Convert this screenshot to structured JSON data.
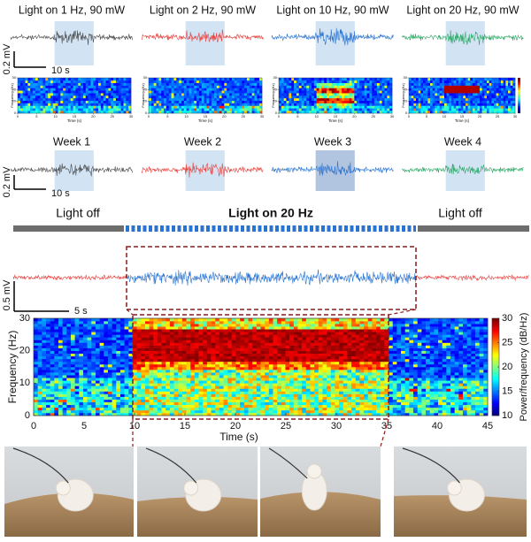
{
  "rows": [
    {
      "panels": [
        {
          "title": "Light on 1 Hz, 90 mW",
          "color": "#4d4d4d"
        },
        {
          "title": "Light on 2 Hz, 90 mW",
          "color": "#e8413c"
        },
        {
          "title": "Light on 10 Hz, 90 mW",
          "color": "#2a73d0"
        },
        {
          "title": "Light on 20 Hz, 90 mW",
          "color": "#2aa563"
        }
      ],
      "scale_bar": {
        "voltage": "0.2 mV",
        "time": "10 s"
      }
    },
    {
      "panels": [
        {
          "title": "Week 1",
          "color": "#4d4d4d"
        },
        {
          "title": "Week 2",
          "color": "#e8413c"
        },
        {
          "title": "Week 3",
          "color": "#2a73d0"
        },
        {
          "title": "Week 4",
          "color": "#2aa563"
        }
      ],
      "scale_bar": {
        "voltage": "0.2 mV",
        "time": "10 s"
      }
    }
  ],
  "mini_spectrogram": {
    "xlabel": "Time (s)",
    "ylabel": "Frequency (Hz)",
    "xlim": [
      0,
      30
    ],
    "ylim": [
      0,
      30
    ],
    "xticks": [
      0,
      5,
      10,
      15,
      20,
      25,
      30
    ],
    "yticks": [
      0,
      10,
      20,
      30
    ]
  },
  "stim": {
    "light_off_before": "Light off",
    "light_on": "Light on 20 Hz",
    "light_off_after": "Light off",
    "trace_color": "#e8413c",
    "light_color": "#2a73d0",
    "scale_bar": {
      "voltage": "0.5 mV",
      "time": "5 s"
    }
  },
  "spectrogram": {
    "xlabel": "Time (s)",
    "ylabel": "Frequency (Hz)",
    "colorbar_label": "Power/frequency (dB/Hz)",
    "xlim": [
      0,
      45
    ],
    "ylim": [
      0,
      30
    ],
    "xticks": [
      0,
      5,
      10,
      15,
      20,
      25,
      30,
      35,
      40,
      45
    ],
    "yticks": [
      0,
      10,
      20,
      30
    ],
    "clim": [
      10,
      30
    ],
    "cticks": [
      10,
      15,
      20,
      25,
      30
    ]
  }
}
